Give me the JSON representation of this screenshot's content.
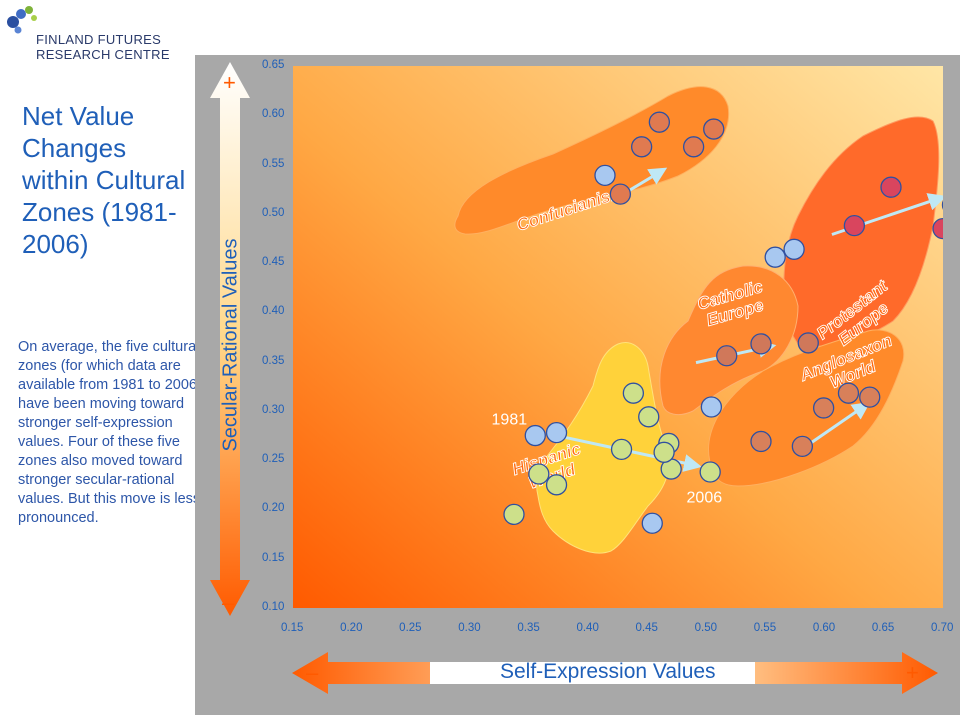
{
  "logo": {
    "line1": "FINLAND FUTURES",
    "line2": "RESEARCH CENTRE"
  },
  "title": "Net Value Changes within Cultural Zones (1981-2006)",
  "description": "On average, the five cultural zones (for which data are available from 1981 to 2006) have been moving toward stronger self-expression values. Four of these five zones also moved toward stronger secular-rational values. But this move is less pronounced.",
  "colors": {
    "accent_blue": "#1f5fb8",
    "arrow_orange": "#ff5a00",
    "panel_gray": "#a8a8a8"
  },
  "chart_data": {
    "type": "scatter",
    "xlabel": "Self-Expression Values",
    "ylabel": "Secular-Rational Values",
    "x_minus": "–",
    "x_plus": "+",
    "y_minus": "–",
    "y_plus": "+",
    "xlim": [
      0.15,
      0.7
    ],
    "ylim": [
      0.1,
      0.65
    ],
    "x_ticks": [
      "0.15",
      "0.20",
      "0.25",
      "0.30",
      "0.35",
      "0.40",
      "0.45",
      "0.50",
      "0.55",
      "0.60",
      "0.65",
      "0.70"
    ],
    "y_ticks": [
      "0.65",
      "0.60",
      "0.55",
      "0.50",
      "0.45",
      "0.40",
      "0.35",
      "0.30",
      "0.25",
      "0.20",
      "0.15",
      "0.10"
    ],
    "legend_labels": {
      "start": "1981",
      "end": "2006"
    },
    "zones": [
      {
        "name": "Confucianism",
        "points": [
          [
            0.414,
            0.539
          ],
          [
            0.427,
            0.52
          ],
          [
            0.445,
            0.568
          ],
          [
            0.46,
            0.593
          ],
          [
            0.506,
            0.586
          ],
          [
            0.489,
            0.568
          ]
        ],
        "arrow": [
          [
            0.428,
            0.519
          ],
          [
            0.464,
            0.545
          ]
        ]
      },
      {
        "name": "Protestant Europe",
        "points": [
          [
            0.625,
            0.488
          ],
          [
            0.656,
            0.527
          ],
          [
            0.708,
            0.509
          ],
          [
            0.7,
            0.485
          ],
          [
            0.574,
            0.464
          ]
        ],
        "arrow": [
          [
            0.606,
            0.479
          ],
          [
            0.7,
            0.517
          ]
        ]
      },
      {
        "name": "Catholic Europe",
        "points": [
          [
            0.558,
            0.456
          ],
          [
            0.517,
            0.356
          ],
          [
            0.546,
            0.368
          ],
          [
            0.586,
            0.369
          ],
          [
            0.504,
            0.304
          ]
        ],
        "arrow": [
          [
            0.491,
            0.349
          ],
          [
            0.556,
            0.366
          ]
        ]
      },
      {
        "name": "Anglosaxon World",
        "points": [
          [
            0.546,
            0.269
          ],
          [
            0.581,
            0.264
          ],
          [
            0.599,
            0.303
          ],
          [
            0.62,
            0.318
          ],
          [
            0.638,
            0.314
          ]
        ],
        "arrow": [
          [
            0.584,
            0.264
          ],
          [
            0.636,
            0.307
          ]
        ]
      },
      {
        "name": "Hispanic World",
        "points": [
          [
            0.438,
            0.318
          ],
          [
            0.355,
            0.275
          ],
          [
            0.373,
            0.278
          ],
          [
            0.451,
            0.294
          ],
          [
            0.468,
            0.267
          ],
          [
            0.47,
            0.241
          ],
          [
            0.464,
            0.258
          ],
          [
            0.358,
            0.236
          ],
          [
            0.373,
            0.225
          ],
          [
            0.428,
            0.261
          ],
          [
            0.454,
            0.186
          ],
          [
            0.503,
            0.238
          ],
          [
            0.337,
            0.195
          ]
        ],
        "arrow": [
          [
            0.373,
            0.275
          ],
          [
            0.493,
            0.244
          ]
        ]
      }
    ]
  }
}
